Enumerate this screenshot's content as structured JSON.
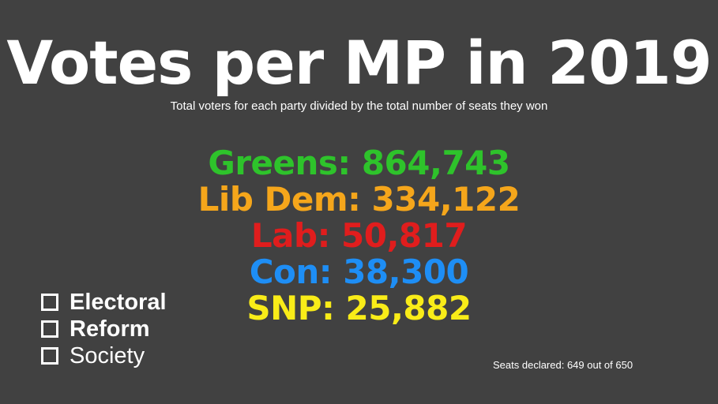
{
  "title": "Votes per MP in 2019",
  "subtitle": "Total voters for each party divided by the total number of seats they won",
  "results": [
    {
      "label": "Greens: 864,743",
      "color": "#2ec32b"
    },
    {
      "label": "Lib Dem: 334,122",
      "color": "#f5a61b"
    },
    {
      "label": "Lab: 50,817",
      "color": "#e01d1d"
    },
    {
      "label": "Con: 38,300",
      "color": "#1e8ef5"
    },
    {
      "label": "SNP: 25,882",
      "color": "#f9ec18"
    }
  ],
  "logo": {
    "words": [
      "Electoral",
      "Reform",
      "Society"
    ]
  },
  "footnote": "Seats declared: 649 out of 650",
  "colors": {
    "background": "#414141",
    "text": "#ffffff"
  }
}
